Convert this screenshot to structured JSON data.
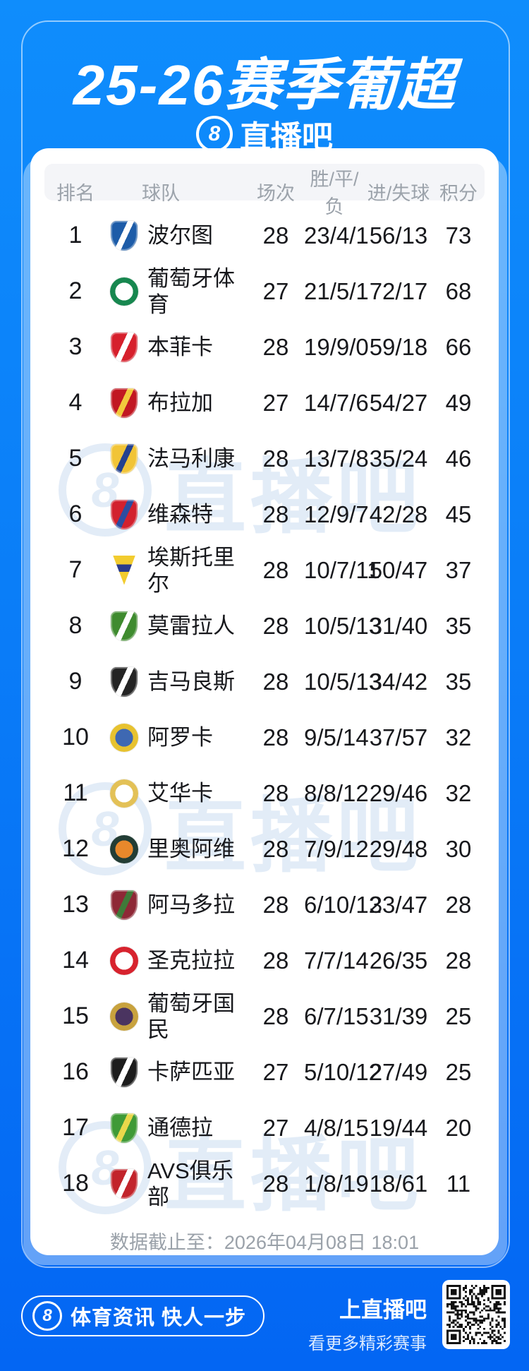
{
  "page": {
    "bg_top": "#0F8DFC",
    "bg_bottom": "#0366F3",
    "accent": "#0A7DF8"
  },
  "header": {
    "title": "25-26赛季葡超",
    "brand": {
      "logo_glyph": "8",
      "name": "直播吧"
    }
  },
  "watermark": {
    "glyph": "8",
    "text": "直播吧"
  },
  "table": {
    "columns": [
      "排名",
      "球队",
      "场次",
      "胜/平/负",
      "进/失球",
      "积分"
    ],
    "rows": [
      {
        "rank": "1",
        "team": "波尔图",
        "icon": {
          "name": "porto-crest",
          "shape": "shield",
          "c1": "#1D5CA8",
          "c2": "#FFFFFF"
        },
        "played": "28",
        "wdl": "23/4/1",
        "goals": "56/13",
        "points": "73"
      },
      {
        "rank": "2",
        "team": "葡萄牙体育",
        "icon": {
          "name": "sporting-crest",
          "shape": "circle",
          "c1": "#17874F",
          "c2": "#FFFFFF"
        },
        "played": "27",
        "wdl": "21/5/1",
        "goals": "72/17",
        "points": "68"
      },
      {
        "rank": "3",
        "team": "本菲卡",
        "icon": {
          "name": "benfica-crest",
          "shape": "shield",
          "c1": "#D6202C",
          "c2": "#FFFFFF"
        },
        "played": "28",
        "wdl": "19/9/0",
        "goals": "59/18",
        "points": "66"
      },
      {
        "rank": "4",
        "team": "布拉加",
        "icon": {
          "name": "braga-crest",
          "shape": "shield",
          "c1": "#C11722",
          "c2": "#F2C83C"
        },
        "played": "27",
        "wdl": "14/7/6",
        "goals": "54/27",
        "points": "49"
      },
      {
        "rank": "5",
        "team": "法马利康",
        "icon": {
          "name": "famalicao-crest",
          "shape": "shield",
          "c1": "#F1C437",
          "c2": "#24418F"
        },
        "played": "28",
        "wdl": "13/7/8",
        "goals": "35/24",
        "points": "46"
      },
      {
        "rank": "6",
        "team": "维森特",
        "icon": {
          "name": "gil-vicente-crest",
          "shape": "shield",
          "c1": "#D2212E",
          "c2": "#2C4DA0"
        },
        "played": "28",
        "wdl": "12/9/7",
        "goals": "42/28",
        "points": "45"
      },
      {
        "rank": "7",
        "team": "埃斯托里尔",
        "icon": {
          "name": "estoril-crest",
          "shape": "pennant",
          "c1": "#F2CC2F",
          "c2": "#2B3C8C"
        },
        "played": "28",
        "wdl": "10/7/11",
        "goals": "50/47",
        "points": "37"
      },
      {
        "rank": "8",
        "team": "莫雷拉人",
        "icon": {
          "name": "moreirense-crest",
          "shape": "shield",
          "c1": "#3F8B2F",
          "c2": "#FFFFFF"
        },
        "played": "28",
        "wdl": "10/5/13",
        "goals": "31/40",
        "points": "35"
      },
      {
        "rank": "9",
        "team": "吉马良斯",
        "icon": {
          "name": "vitoria-guimaraes-crest",
          "shape": "shield",
          "c1": "#242424",
          "c2": "#FFFFFF"
        },
        "played": "28",
        "wdl": "10/5/13",
        "goals": "34/42",
        "points": "35"
      },
      {
        "rank": "10",
        "team": "阿罗卡",
        "icon": {
          "name": "arouca-crest",
          "shape": "circle",
          "c1": "#E7C22F",
          "c2": "#3E68B2"
        },
        "played": "28",
        "wdl": "9/5/14",
        "goals": "37/57",
        "points": "32"
      },
      {
        "rank": "11",
        "team": "艾华卡",
        "icon": {
          "name": "alverca-crest",
          "shape": "circle",
          "c1": "#E3C157",
          "c2": "#FFFFFF"
        },
        "played": "28",
        "wdl": "8/8/12",
        "goals": "29/46",
        "points": "32"
      },
      {
        "rank": "12",
        "team": "里奥阿维",
        "icon": {
          "name": "rio-ave-crest",
          "shape": "circle",
          "c1": "#223D35",
          "c2": "#E8882B"
        },
        "played": "28",
        "wdl": "7/9/12",
        "goals": "29/48",
        "points": "30"
      },
      {
        "rank": "13",
        "team": "阿马多拉",
        "icon": {
          "name": "estrela-amadora-crest",
          "shape": "shield",
          "c1": "#8E2836",
          "c2": "#3F7A39"
        },
        "played": "28",
        "wdl": "6/10/12",
        "goals": "33/47",
        "points": "28"
      },
      {
        "rank": "14",
        "team": "圣克拉拉",
        "icon": {
          "name": "santa-clara-crest",
          "shape": "circle",
          "c1": "#D7232E",
          "c2": "#FFFFFF"
        },
        "played": "28",
        "wdl": "7/7/14",
        "goals": "26/35",
        "points": "28"
      },
      {
        "rank": "15",
        "team": "葡萄牙国民",
        "icon": {
          "name": "nacional-crest",
          "shape": "circle",
          "c1": "#C8A23E",
          "c2": "#4A3460"
        },
        "played": "28",
        "wdl": "6/7/15",
        "goals": "31/39",
        "points": "25"
      },
      {
        "rank": "16",
        "team": "卡萨匹亚",
        "icon": {
          "name": "casa-pia-crest",
          "shape": "shield",
          "c1": "#1C1C1C",
          "c2": "#FFFFFF"
        },
        "played": "27",
        "wdl": "5/10/12",
        "goals": "27/49",
        "points": "25"
      },
      {
        "rank": "17",
        "team": "通德拉",
        "icon": {
          "name": "tondela-crest",
          "shape": "shield",
          "c1": "#3F9A37",
          "c2": "#E9D84B"
        },
        "played": "27",
        "wdl": "4/8/15",
        "goals": "19/44",
        "points": "20"
      },
      {
        "rank": "18",
        "team": "AVS俱乐部",
        "icon": {
          "name": "avs-crest",
          "shape": "shield",
          "c1": "#C2242B",
          "c2": "#FFFFFF"
        },
        "played": "28",
        "wdl": "1/8/19",
        "goals": "18/61",
        "points": "11"
      }
    ],
    "footnote": "数据截止至：2026年04月08日 18:01"
  },
  "footer": {
    "logo_glyph": "8",
    "slogan": "体育资讯 快人一步",
    "cta_title": "上直播吧",
    "cta_subtitle": "看更多精彩赛事"
  }
}
